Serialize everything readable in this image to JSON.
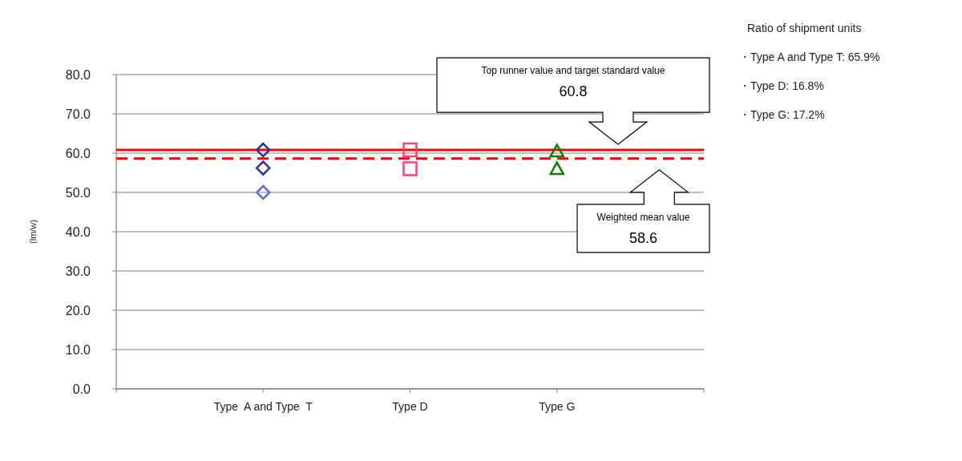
{
  "chart_data": {
    "type": "scatter",
    "ylabel": "(lm/w)",
    "categories": [
      null,
      "Type  A and Type  T",
      "Type D",
      "Type G",
      null
    ],
    "series": [
      {
        "marker": "diamond",
        "color": "#2e3192",
        "values": [
          null,
          60.8,
          null,
          null,
          null
        ]
      },
      {
        "marker": "diamond",
        "color": "#2e3192",
        "values": [
          null,
          56.2,
          null,
          null,
          null
        ]
      },
      {
        "marker": "diamond",
        "color": "#6a6acb",
        "values": [
          null,
          50.0,
          null,
          null,
          null
        ]
      },
      {
        "marker": "square",
        "color": "#ff3f7f",
        "values": [
          null,
          null,
          60.8,
          null,
          null
        ]
      },
      {
        "marker": "square",
        "color": "#ff3f7f",
        "values": [
          null,
          null,
          56.0,
          null,
          null
        ]
      },
      {
        "marker": "triangle",
        "color": "#008000",
        "values": [
          null,
          null,
          null,
          60.5,
          null
        ]
      },
      {
        "marker": "triangle",
        "color": "#008000",
        "values": [
          null,
          null,
          null,
          56.0,
          null
        ]
      }
    ],
    "ylim": [
      0,
      80
    ],
    "yticks": [
      {
        "value": 0,
        "label": "0.0"
      },
      {
        "value": 10,
        "label": "10.0"
      },
      {
        "value": 20,
        "label": "20.0"
      },
      {
        "value": 30,
        "label": "30.0"
      },
      {
        "value": 40,
        "label": "40.0"
      },
      {
        "value": 50,
        "label": "50.0"
      },
      {
        "value": 60,
        "label": "60.0"
      },
      {
        "value": 70,
        "label": "70.0"
      },
      {
        "value": 80,
        "label": "80.0"
      }
    ],
    "grid": "y",
    "ref_lines": [
      {
        "axis": "y",
        "value": 60.8,
        "color": "#ff0000",
        "line_style": "solid"
      },
      {
        "axis": "y",
        "value": 58.6,
        "color": "#ff0000",
        "line_style": "dashed"
      }
    ],
    "annotations": [
      "Top runner value and target standard value",
      "60.8",
      "Weighted mean value",
      "58.6",
      "Ratio of shipment units",
      "・Type A and Type T: 65.9%",
      "・Type D: 16.8%",
      "・Type G: 17.2%"
    ]
  }
}
